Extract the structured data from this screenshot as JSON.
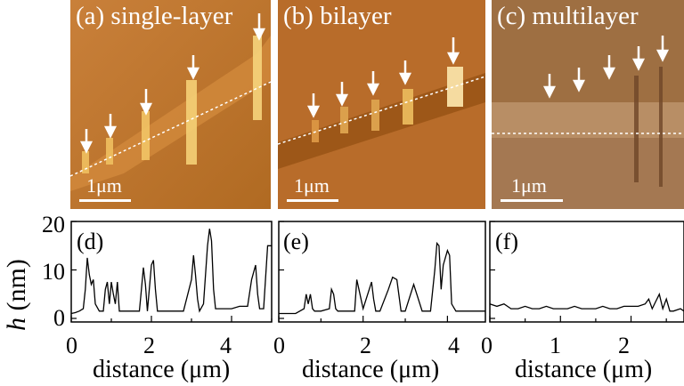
{
  "panels": [
    {
      "label": "(a) single-layer",
      "scale": "1μm",
      "color_light": "#e8b24a",
      "color_dark": "#a55a12"
    },
    {
      "label": "(b) bilayer",
      "scale": "1μm",
      "color_light": "#e0a145",
      "color_dark": "#9a5214"
    },
    {
      "label": "(c) multilayer",
      "scale": "1μm",
      "color_light": "#c89a6a",
      "color_dark": "#8a5a2e"
    }
  ],
  "y_axis_label": "h",
  "y_axis_unit": "(nm)",
  "chart_data": [
    {
      "type": "line",
      "panel_label": "(d)",
      "xlabel": "distance (μm)",
      "ylabel": "h (nm)",
      "xlim": [
        0,
        5.0
      ],
      "ylim": [
        0,
        20
      ],
      "xticks": [
        "0",
        "2",
        "4"
      ],
      "yticks": [
        "0",
        "10",
        "20"
      ],
      "series": [
        {
          "x": [
            0.0,
            0.1,
            0.2,
            0.3,
            0.35,
            0.4,
            0.45,
            0.5,
            0.55,
            0.6,
            0.7,
            0.8,
            0.85,
            0.9,
            0.95,
            1.0,
            1.05,
            1.1,
            1.15,
            1.2,
            1.4,
            1.6,
            1.7,
            1.75,
            1.8,
            1.85,
            1.9,
            2.0,
            2.05,
            2.1,
            2.15,
            2.2,
            2.4,
            2.6,
            2.8,
            3.0,
            3.05,
            3.1,
            3.15,
            3.2,
            3.3,
            3.4,
            3.45,
            3.5,
            3.55,
            3.6,
            3.65,
            3.7,
            3.8,
            4.0,
            4.2,
            4.4,
            4.5,
            4.6,
            4.65,
            4.7,
            4.8,
            4.9,
            5.0
          ],
          "y": [
            1,
            1.2,
            1.5,
            2,
            6,
            12.5,
            9,
            7,
            8,
            3,
            1.5,
            1.5,
            6,
            7.5,
            3,
            7.5,
            5,
            3,
            7.5,
            1.5,
            1.5,
            1.5,
            1.5,
            6,
            10.5,
            7,
            1.5,
            11,
            12,
            6,
            1.5,
            1.5,
            1.5,
            1.5,
            1.5,
            8,
            13,
            9,
            4,
            1.5,
            3,
            15,
            18.5,
            16,
            6,
            2,
            2,
            2,
            2,
            2,
            2.5,
            2.5,
            8,
            11,
            5,
            2,
            2,
            15,
            15
          ]
        }
      ]
    },
    {
      "type": "line",
      "panel_label": "(e)",
      "xlabel": "distance (μm)",
      "ylabel": "h (nm)",
      "xlim": [
        0,
        4.9
      ],
      "ylim": [
        0,
        20
      ],
      "xticks": [
        "0",
        "2",
        "4"
      ],
      "yticks": [],
      "series": [
        {
          "x": [
            0.0,
            0.2,
            0.4,
            0.6,
            0.65,
            0.7,
            0.75,
            0.8,
            0.85,
            0.9,
            1.0,
            1.2,
            1.25,
            1.3,
            1.35,
            1.4,
            1.6,
            1.8,
            1.85,
            1.9,
            2.0,
            2.2,
            2.25,
            2.3,
            2.4,
            2.6,
            2.7,
            2.8,
            2.9,
            3.0,
            3.2,
            3.4,
            3.6,
            3.7,
            3.75,
            3.8,
            3.85,
            3.9,
            4.0,
            4.05,
            4.1,
            4.2,
            4.3,
            4.5,
            4.7,
            4.9
          ],
          "y": [
            1,
            1,
            1,
            2,
            5,
            3,
            5,
            2,
            1.5,
            1.5,
            1.5,
            2,
            6,
            5,
            2,
            1.5,
            1.5,
            1.5,
            8,
            6,
            2,
            7.5,
            4,
            1.5,
            1.5,
            6,
            8.5,
            8,
            1.5,
            1.5,
            7,
            1.5,
            1.5,
            10,
            15.5,
            15,
            6,
            11,
            14,
            13,
            3,
            1.5,
            1.5,
            1.5,
            1.5,
            1.5
          ]
        }
      ]
    },
    {
      "type": "line",
      "panel_label": "(f)",
      "xlabel": "distance (μm)",
      "ylabel": "h (nm)",
      "xlim": [
        0,
        2.75
      ],
      "ylim": [
        0,
        20
      ],
      "xticks": [
        "0",
        "1",
        "2"
      ],
      "yticks": [],
      "series": [
        {
          "x": [
            0.0,
            0.1,
            0.2,
            0.3,
            0.4,
            0.5,
            0.6,
            0.7,
            0.8,
            0.9,
            1.0,
            1.1,
            1.2,
            1.3,
            1.4,
            1.5,
            1.6,
            1.7,
            1.8,
            1.9,
            2.0,
            2.1,
            2.2,
            2.25,
            2.3,
            2.35,
            2.4,
            2.45,
            2.5,
            2.55,
            2.6,
            2.7,
            2.75
          ],
          "y": [
            3,
            2.5,
            3,
            2,
            2,
            2.5,
            2,
            2,
            2.5,
            2,
            2,
            2,
            2.5,
            2,
            2,
            2,
            2.5,
            2,
            2,
            2.5,
            2.5,
            2.5,
            3,
            4,
            2,
            3.5,
            5,
            2,
            4,
            1.5,
            1.5,
            2,
            1.5
          ]
        }
      ]
    }
  ]
}
